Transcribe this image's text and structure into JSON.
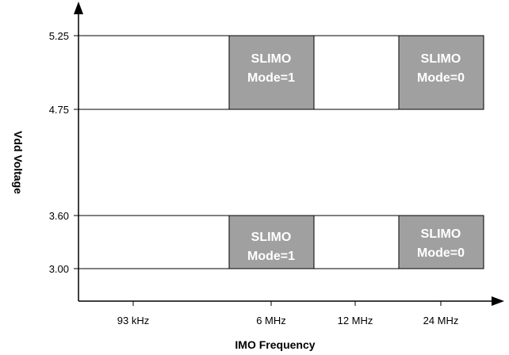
{
  "x_axis": {
    "title": "IMO Frequency",
    "ticks": [
      "93 kHz",
      "6 MHz",
      "12 MHz",
      "24 MHz"
    ]
  },
  "y_axis": {
    "title": "Vdd Voltage",
    "ticks": [
      "5.25",
      "4.75",
      "3.60",
      "3.00"
    ]
  },
  "regions": [
    {
      "line1": "SLIMO",
      "line2": "Mode=1",
      "frequency": "6 MHz",
      "voltage_range": [
        "4.75",
        "5.25"
      ]
    },
    {
      "line1": "SLIMO",
      "line2": "Mode=0",
      "frequency": "24 MHz",
      "voltage_range": [
        "4.75",
        "5.25"
      ]
    },
    {
      "line1": "SLIMO",
      "line2": "Mode=1",
      "frequency": "6 MHz",
      "voltage_range": [
        "3.00",
        "3.60"
      ]
    },
    {
      "line1": "SLIMO",
      "line2": "Mode=0",
      "frequency": "24 MHz",
      "voltage_range": [
        "3.00",
        "3.60"
      ]
    }
  ],
  "colors": {
    "region_fill": "#a0a0a0",
    "region_text": "#ffffff",
    "lines": "#000000"
  }
}
